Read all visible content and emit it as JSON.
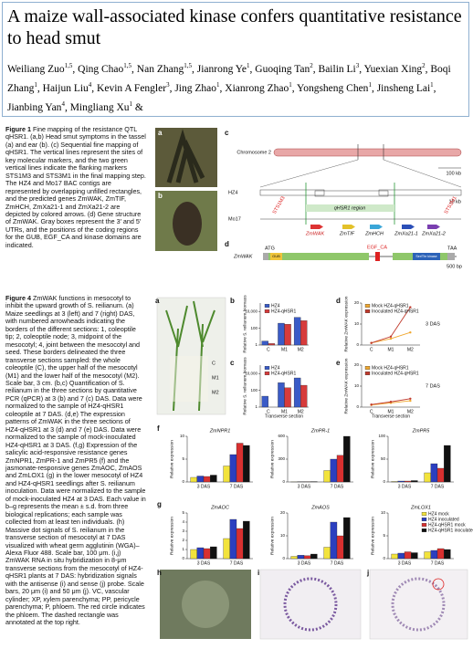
{
  "header": {
    "title": "A maize wall-associated kinase confers quantitative resistance to head smut",
    "authors": [
      {
        "name": "Weiliang Zuo",
        "affil": "1,5"
      },
      {
        "name": "Qing Chao",
        "affil": "1,5"
      },
      {
        "name": "Nan Zhang",
        "affil": "1,5"
      },
      {
        "name": "Jianrong Ye",
        "affil": "1"
      },
      {
        "name": "Guoqing Tan",
        "affil": "2"
      },
      {
        "name": "Bailin Li",
        "affil": "3"
      },
      {
        "name": "Yuexian Xing",
        "affil": "2"
      },
      {
        "name": "Boqi Zhang",
        "affil": "1"
      },
      {
        "name": "Haijun Liu",
        "affil": "4"
      },
      {
        "name": "Kevin A Fengler",
        "affil": "3"
      },
      {
        "name": "Jing Zhao",
        "affil": "1"
      },
      {
        "name": "Xianrong Zhao",
        "affil": "1"
      },
      {
        "name": "Yongsheng Chen",
        "affil": "1"
      },
      {
        "name": "Jinsheng Lai",
        "affil": "1"
      },
      {
        "name": "Jianbing Yan",
        "affil": "4"
      },
      {
        "name": "Mingliang Xu",
        "affil": "1"
      }
    ],
    "separators": [
      ", ",
      ", ",
      ", ",
      ", ",
      ", ",
      ", ",
      ", ",
      ", ",
      ", ",
      ", ",
      ", ",
      ", ",
      ", ",
      ", ",
      ", ",
      " & "
    ]
  },
  "figure1": {
    "label": "Figure 1",
    "caption": "Fine mapping of the resistance QTL qHSR1. (a,b) Head smut symptoms in the tassel (a) and ear (b). (c) Sequential fine mapping of qHSR1. The vertical lines represent the sites of key molecular markers, and the two green vertical lines indicate the flanking markers STS1M3 and STS3M1 in the final mapping step. The HZ4 and Mo17 BAC contigs are represented by overlapping unfilled rectangles, and the predicted genes ZmWAK, ZmTIF, ZmHCH, ZmXa21-1 and ZmXa21-2 are depicted by colored arrows. (d) Gene structure of ZmWAK. Gray boxes represent the 3′ and 5′ UTRs, and the positions of the coding regions for the GUB, EGF_CA and kinase domains are indicated.",
    "panels": [
      "a",
      "b",
      "c",
      "d"
    ],
    "chromosome": "Chromosome 2",
    "scale_chromosome": "100 kb",
    "lines": [
      "HZ4",
      "Mo17"
    ],
    "scale_contig": "10 kb",
    "region": "qHSR1 region",
    "markers": [
      "STS1M3",
      "STS3M1"
    ],
    "genes": [
      "ZmWAK",
      "ZmTIF",
      "ZmHCH",
      "ZmXa21-1",
      "ZmXa21-2"
    ],
    "gene_structure": {
      "gene": "ZmWAK",
      "start": "ATG",
      "stop": "TAA",
      "domains": [
        "GUB",
        "EGF_CA",
        "Ser/Thr kinase"
      ],
      "scale": "500 bp"
    }
  },
  "figure4": {
    "label": "Figure 4",
    "caption": "ZmWAK functions in mesocotyl to inhibit the upward growth of S. reilianum. (a) Maize seedlings at 3 (left) and 7 (right) DAS, with numbered arrowheads indicating the borders of the different sections: 1, coleoptile tip; 2, coleoptile node; 3, midpoint of the mesocotyl; 4, joint between the mesocotyl and seed. These borders delineated the three transverse sections sampled: the whole coleoptile (C), the upper half of the mesocotyl (M1) and the lower half of the mesocotyl (M2). Scale bar, 3 cm. (b,c) Quantification of S. reilianum in the three sections by quantitative PCR (qPCR) at 3 (b) and 7 (c) DAS. Data were normalized to the sample of HZ4-qHSR1 coleoptile at 7 DAS. (d,e) The expression patterns of ZmWAK in the three sections of HZ4-qHSR1 at 3 (d) and 7 (e) DAS. Data were normalized to the sample of mock-inoculated HZ4-qHSR1 at 3 DAS. (f,g) Expression of the salicylic acid-responsive resistance genes ZmNPR1, ZmPR-1 and ZmPR5 (f) and the jasmonate-responsive genes ZmAOC, ZmAOS and ZmLOX1 (g) in the lower mesocotyl of HZ4 and HZ4-qHSR1 seedlings after S. reilianum inoculation. Data were normalized to the sample of mock-inoculated HZ4 at 3 DAS. Each value in b–g represents the mean ± s.d. from three biological replications; each sample was collected from at least ten individuals. (h) Massive dot signals of S. reilianum in the transverse section of mesocotyl at 7 DAS visualized with wheat germ agglutinin (WGA)–Alexa Fluor 488. Scale bar, 100 μm. (i,j) ZmWAK RNA in situ hybridization in 8-μm transverse sections from the mesocotyl of HZ4-qHSR1 plants at 7 DAS: hybridization signals with the antisense (i) and sense (j) probe. Scale bars, 20 μm (i) and 50 μm (j). VC, vascular cylinder; XP, xylem parenchyma; PP, pericycle parenchyma; P, phloem. The red circle indicates the phloem. The dashed rectangle was annotated at the top right.",
    "panels": [
      "a",
      "b",
      "c",
      "d",
      "e",
      "f",
      "g",
      "h",
      "i",
      "j"
    ],
    "seedling_labels": [
      "C",
      "M1",
      "M2"
    ],
    "biomass": {
      "y_label": "Relative S. reilianum biomass",
      "x_label": "Transverse section",
      "categories": [
        "C",
        "M1",
        "M2"
      ],
      "log": true,
      "ylim": [
        1,
        100000
      ],
      "yticks": [
        1,
        100,
        {
          "value": 10000,
          "label": "10,000"
        }
      ],
      "series": [
        {
          "name": "HZ4",
          "color": "#3a5bc7"
        },
        {
          "name": "HZ4-qHSR1",
          "color": "#d63b3b"
        }
      ],
      "charts": [
        {
          "values": [
            [
              3,
              400,
              2000
            ],
            [
              1.5,
              300,
              800
            ]
          ]
        },
        {
          "values": [
            [
              20,
              800,
              3000
            ],
            [
              1,
              200,
              400
            ]
          ]
        }
      ]
    },
    "wak_expression": {
      "y_label": "Relative ZmWAK expression",
      "x_label": "Transverse section",
      "categories": [
        "C",
        "M1",
        "M2"
      ],
      "ylim": [
        0,
        20
      ],
      "yticks": [
        0,
        10,
        20
      ],
      "series": [
        {
          "name": "Mock HZ4-qHSR1",
          "color": "#f0a830"
        },
        {
          "name": "Inoculated HZ4-qHSR1",
          "color": "#c0392b"
        }
      ],
      "charts": [
        {
          "title": "3 DAS",
          "values": [
            [
              1,
              3,
              6
            ],
            [
              1,
              4,
              18
            ]
          ]
        },
        {
          "title": "7 DAS",
          "values": [
            [
              1,
              2,
              3
            ],
            [
              1.2,
              2.5,
              4
            ]
          ]
        }
      ]
    },
    "defense_expression": {
      "y_label": "Relative expression",
      "categories": [
        "3 DAS",
        "7 DAS"
      ],
      "series": [
        {
          "name": "HZ4 mock",
          "color": "#f2e33c"
        },
        {
          "name": "HZ4 inoculated",
          "color": "#2b3fbf"
        },
        {
          "name": "HZ4-qHSR1 mock",
          "color": "#d83030"
        },
        {
          "name": "HZ4-qHSR1 inoculated",
          "color": "#111111"
        }
      ],
      "charts": [
        {
          "title": "ZmNPR1",
          "ylim": [
            0,
            10
          ],
          "yticks": [
            0,
            5,
            10
          ],
          "values": [
            [
              1,
              3.5
            ],
            [
              1.3,
              6
            ],
            [
              1.2,
              8.5
            ],
            [
              1.5,
              8
            ]
          ]
        },
        {
          "title": "ZmPR-1",
          "ylim": [
            0,
            600
          ],
          "yticks": [
            0,
            300,
            600
          ],
          "values": [
            [
              1,
              150
            ],
            [
              2,
              300
            ],
            [
              3,
              350
            ],
            [
              5,
              600
            ]
          ]
        },
        {
          "title": "ZmPR5",
          "ylim": [
            0,
            100
          ],
          "yticks": [
            0,
            50,
            100
          ],
          "values": [
            [
              1,
              20
            ],
            [
              2,
              40
            ],
            [
              2,
              30
            ],
            [
              3,
              80
            ]
          ]
        },
        {
          "title": "ZmAOC",
          "ylim": [
            0,
            5
          ],
          "yticks": [
            0,
            1,
            2,
            3,
            4,
            5
          ],
          "values": [
            [
              1,
              2.2
            ],
            [
              1.2,
              4.3
            ],
            [
              1.1,
              3.3
            ],
            [
              1.3,
              4.1
            ]
          ]
        },
        {
          "title": "ZmAOS",
          "ylim": [
            0,
            20
          ],
          "yticks": [
            0,
            10,
            20
          ],
          "values": [
            [
              1,
              5
            ],
            [
              1.5,
              16
            ],
            [
              1.3,
              10
            ],
            [
              2,
              18
            ]
          ]
        },
        {
          "title": "ZmLOX1",
          "ylim": [
            0,
            10
          ],
          "yticks": [
            0,
            5,
            10
          ],
          "values": [
            [
              1,
              1.5
            ],
            [
              1.2,
              1.8
            ],
            [
              1.5,
              2.2
            ],
            [
              1.3,
              2
            ]
          ]
        }
      ]
    }
  }
}
